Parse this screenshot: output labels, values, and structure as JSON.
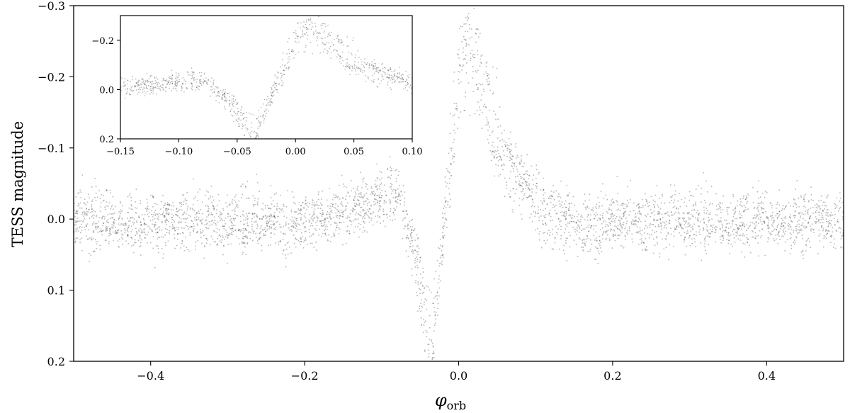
{
  "chart_data": [
    {
      "name": "main",
      "type": "scatter",
      "xlabel": "φ",
      "xlabel_sub": "orb",
      "ylabel": "TESS magnitude",
      "xlim": [
        -0.5,
        0.5
      ],
      "ylim": [
        0.2,
        -0.3
      ],
      "y_inverted": true,
      "xticks": [
        -0.4,
        -0.2,
        0.0,
        0.2,
        0.4
      ],
      "xtick_labels": [
        "−0.4",
        "−0.2",
        "0.0",
        "0.2",
        "0.4"
      ],
      "yticks": [
        -0.3,
        -0.2,
        -0.1,
        0.0,
        0.1,
        0.2
      ],
      "ytick_labels": [
        "−0.3",
        "−0.2",
        "−0.1",
        "0.0",
        "0.1",
        "0.2"
      ],
      "grid": false,
      "marker_color": "#000000",
      "profile": {
        "x": [
          -0.5,
          -0.2,
          -0.12,
          -0.09,
          -0.08,
          -0.07,
          -0.06,
          -0.05,
          -0.04,
          -0.035,
          -0.03,
          -0.02,
          -0.01,
          0.0,
          0.005,
          0.01,
          0.015,
          0.02,
          0.03,
          0.04,
          0.05,
          0.06,
          0.08,
          0.1,
          0.12,
          0.15,
          0.2,
          0.5
        ],
        "y": [
          0.0,
          0.0,
          -0.02,
          -0.04,
          -0.04,
          -0.01,
          0.03,
          0.09,
          0.15,
          0.17,
          0.13,
          0.02,
          -0.09,
          -0.19,
          -0.23,
          -0.25,
          -0.25,
          -0.23,
          -0.19,
          -0.15,
          -0.12,
          -0.09,
          -0.06,
          -0.03,
          -0.01,
          0.01,
          0.0,
          0.0
        ]
      },
      "scatter_sigma": 0.022
    },
    {
      "name": "inset",
      "type": "scatter",
      "xlim": [
        -0.15,
        0.1
      ],
      "ylim": [
        0.2,
        -0.3
      ],
      "y_inverted": true,
      "xticks": [
        -0.15,
        -0.1,
        -0.05,
        0.0,
        0.05,
        0.1
      ],
      "xtick_labels": [
        "−0.15",
        "−0.10",
        "−0.05",
        "0.00",
        "0.05",
        "0.10"
      ],
      "yticks": [
        -0.2,
        0.0,
        0.2
      ],
      "ytick_labels": [
        "−0.2",
        "0.0",
        "0.2"
      ],
      "grid": false,
      "marker_color": "#000000"
    }
  ]
}
